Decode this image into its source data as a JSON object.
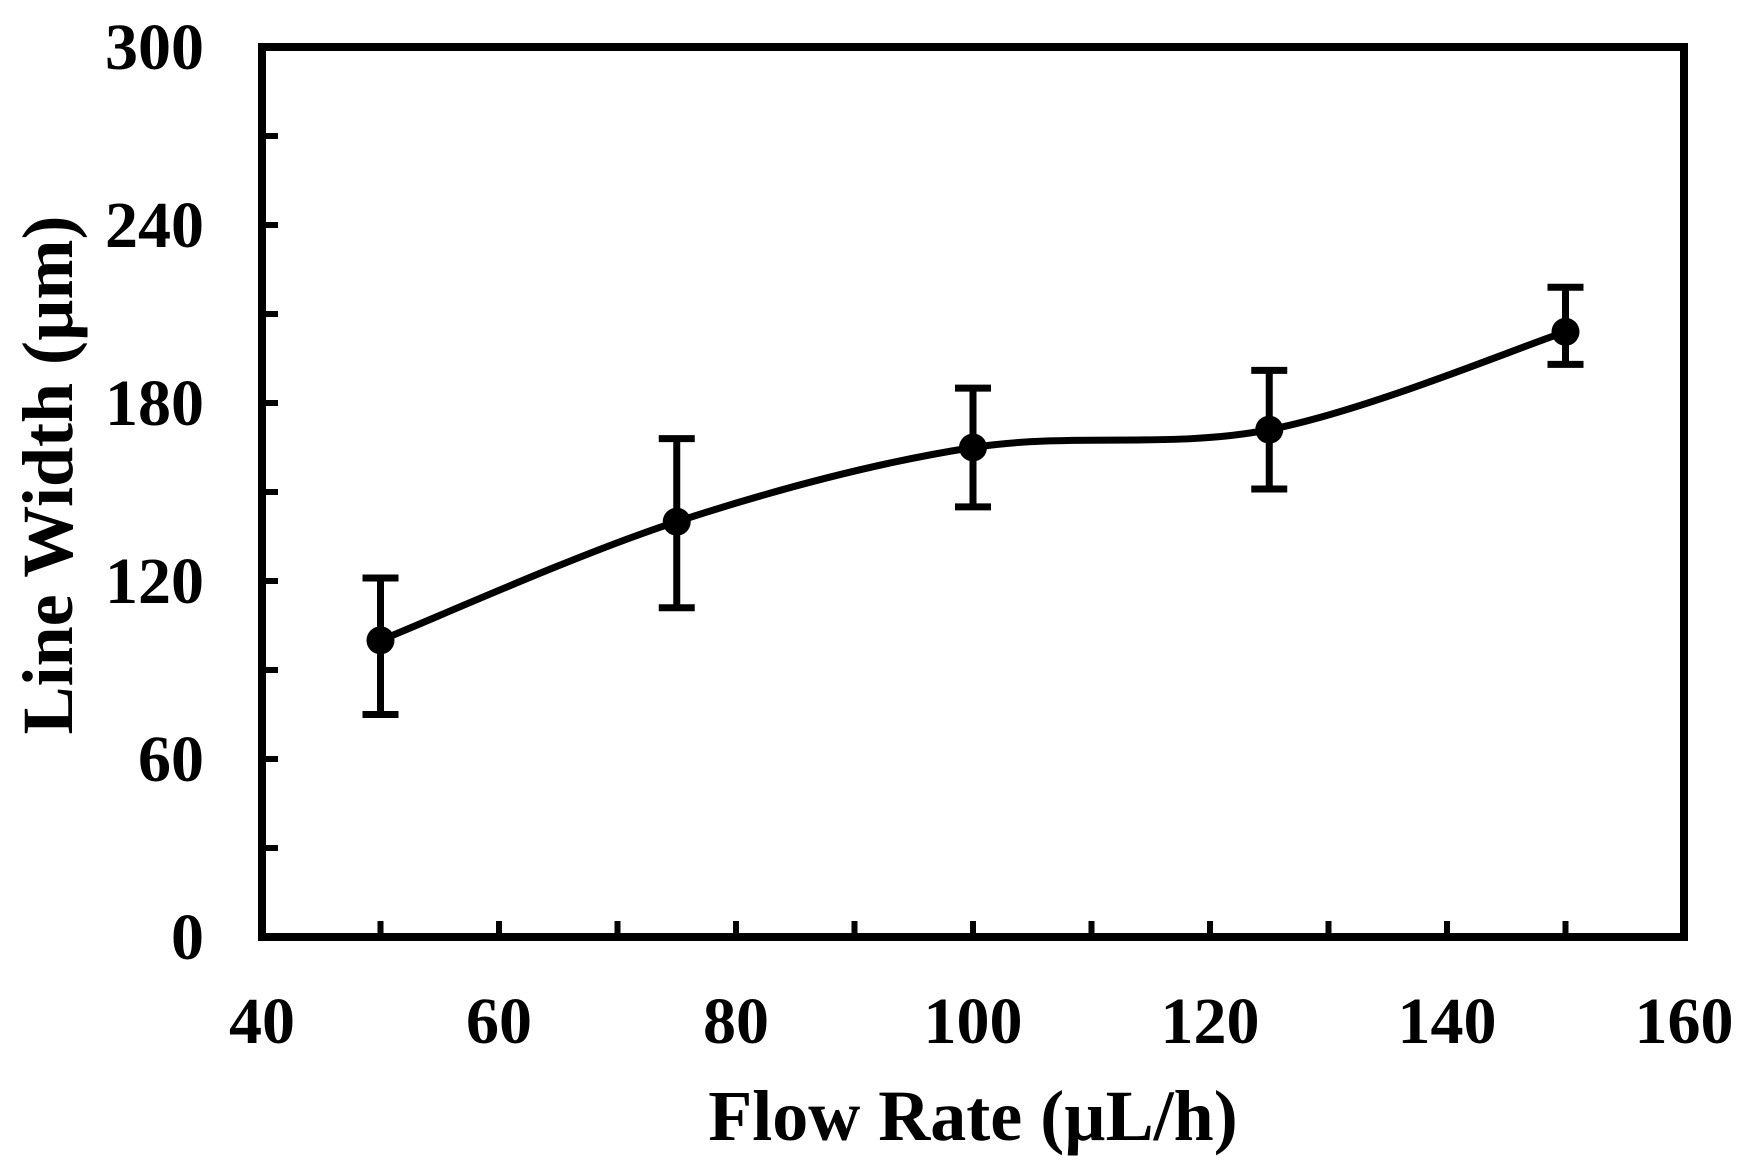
{
  "chart_data": {
    "type": "line",
    "title": "",
    "xlabel": "Flow Rate (µL/h)",
    "ylabel": "Line Width (µm)",
    "xlim": [
      40,
      160
    ],
    "ylim": [
      0,
      300
    ],
    "x_ticks": [
      40,
      60,
      80,
      100,
      120,
      140,
      160
    ],
    "x_tick_labels": [
      "40",
      "60",
      "80",
      "100",
      "120",
      "140",
      "160"
    ],
    "x_minor_ticks": [
      50,
      70,
      90,
      110,
      130,
      150
    ],
    "y_ticks": [
      0,
      60,
      120,
      180,
      240,
      300
    ],
    "y_tick_labels": [
      "0",
      "60",
      "120",
      "180",
      "240",
      "300"
    ],
    "y_minor_ticks": [
      30,
      90,
      150,
      210,
      270
    ],
    "grid": false,
    "legend": "none",
    "series": [
      {
        "name": "Line Width",
        "x": [
          50,
          75,
          100,
          125,
          150
        ],
        "y": [
          100,
          140,
          165,
          171,
          204
        ],
        "error_low": [
          75,
          111,
          145,
          151,
          193
        ],
        "error_high": [
          121,
          168,
          185,
          191,
          219
        ],
        "color": "#000000",
        "marker": "circle",
        "smooth": true
      }
    ]
  }
}
